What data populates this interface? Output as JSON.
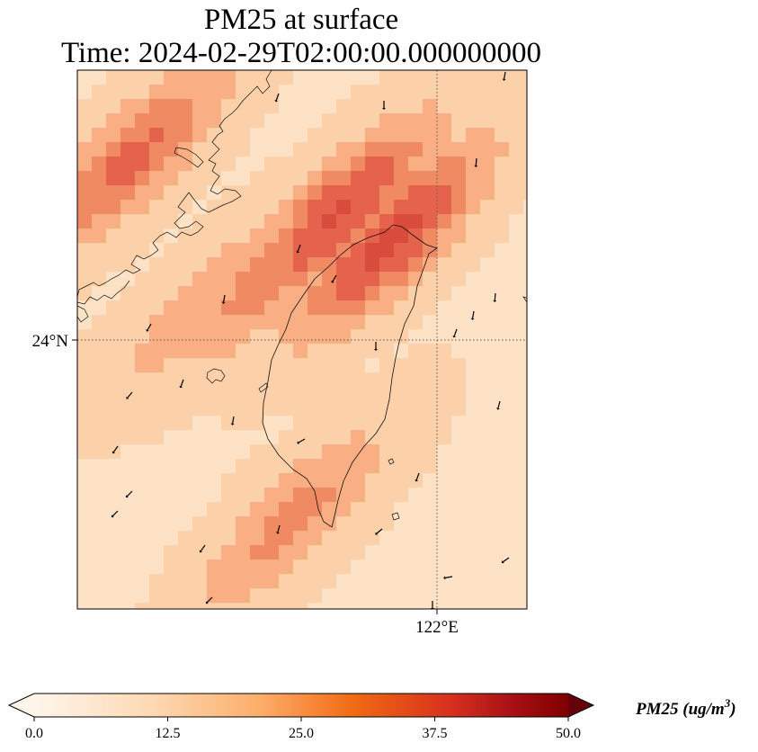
{
  "title": {
    "line1": "PM25 at surface",
    "line2": "Time: 2024-02-29T02:00:00.000000000"
  },
  "map": {
    "lat_label": "24°N",
    "lon_label": "122°E",
    "gridline_lat": 24,
    "gridline_lon": 122,
    "extent": {
      "lon_min": 118.0,
      "lon_max": 123.0,
      "lat_min": 21.0,
      "lat_max": 27.0
    }
  },
  "colorbar": {
    "label_main": "PM25 (ug/m",
    "label_sup": "3",
    "label_close": ")",
    "vmin": 0.0,
    "vmax": 50.0,
    "ticks": [
      "0.0",
      "12.5",
      "25.0",
      "37.5",
      "50.0"
    ],
    "tick_values": [
      0,
      12.5,
      25,
      37.5,
      50
    ],
    "extend": "both",
    "colors": [
      "#fff5eb",
      "#fdd9b4",
      "#fdae6b",
      "#f16913",
      "#c0392b",
      "#a50f15",
      "#67000d"
    ]
  },
  "field": {
    "colormap": [
      "#fff3e4",
      "#fde2c6",
      "#fcd0a8",
      "#f9ae83",
      "#f08a63",
      "#e5634c",
      "#d94b3b"
    ],
    "hotspots": [
      {
        "lon": 121.5,
        "lat": 25.1,
        "value": 33
      },
      {
        "lon": 120.9,
        "lat": 25.4,
        "value": 32
      },
      {
        "lon": 118.6,
        "lat": 26.0,
        "value": 27
      },
      {
        "lon": 120.2,
        "lat": 24.8,
        "value": 24
      },
      {
        "lon": 120.4,
        "lat": 22.0,
        "value": 22
      },
      {
        "lon": 119.4,
        "lat": 24.4,
        "value": 18
      }
    ]
  }
}
